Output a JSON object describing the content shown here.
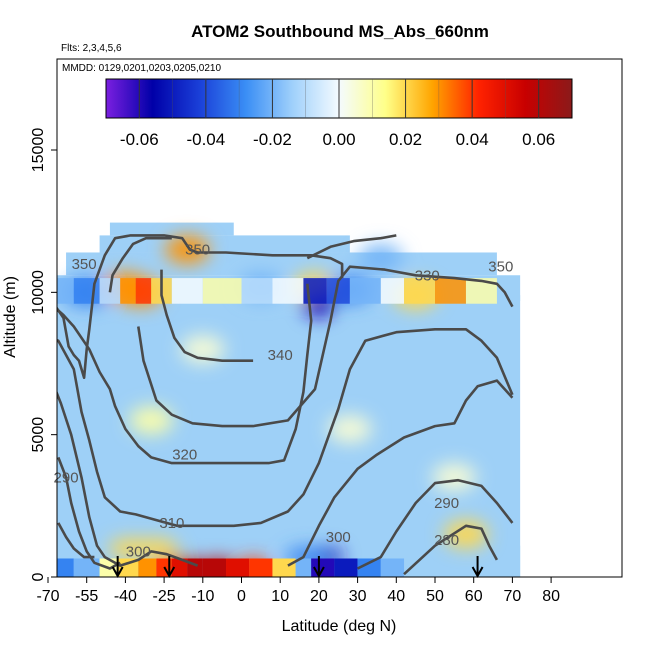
{
  "chart_data": {
    "type": "heatmap",
    "title": "ATOM2 Southbound MS_Abs_660nm",
    "notes": [
      "Flts: 2,3,4,5,6",
      "MMDD: 0129,0201,0203,0205,0210"
    ],
    "xlabel": "Latitude (deg N)",
    "ylabel": "Altitude (m)",
    "xlim": [
      -70,
      80
    ],
    "ylim": [
      0,
      18000
    ],
    "x_ticks": [
      -70,
      -55,
      -40,
      -25,
      -10,
      0,
      10,
      20,
      30,
      40,
      50,
      60,
      70,
      80
    ],
    "y_ticks": [
      0,
      5000,
      10000,
      15000
    ],
    "colorbar": {
      "ticks": [
        -0.06,
        -0.04,
        -0.02,
        0.0,
        0.02,
        0.04,
        0.06
      ],
      "tick_labels": [
        "-0.06",
        "-0.04",
        "-0.02",
        "0.00",
        "0.02",
        "0.04",
        "0.06"
      ],
      "range": [
        -0.07,
        0.07
      ],
      "colors": [
        "#7b1fe0",
        "#0000a8",
        "#1a3fd8",
        "#3a8ef5",
        "#9fd0fb",
        "#f4fbff",
        "#ffff88",
        "#ffa500",
        "#ff2200",
        "#c80000",
        "#8b1a1a"
      ]
    },
    "field_hotspots": [
      {
        "lat": -22,
        "alt": 300,
        "value": 0.04
      },
      {
        "lat": -16,
        "alt": 300,
        "value": 0.06
      },
      {
        "lat": -6,
        "alt": 300,
        "value": 0.06
      },
      {
        "lat": 3,
        "alt": 300,
        "value": 0.04
      },
      {
        "lat": -38,
        "alt": 1000,
        "value": 0.02
      },
      {
        "lat": -28,
        "alt": 1000,
        "value": 0.02
      },
      {
        "lat": -40,
        "alt": 10200,
        "value": 0.03
      },
      {
        "lat": -34,
        "alt": 10000,
        "value": 0.03
      },
      {
        "lat": 19,
        "alt": 10200,
        "value": 0.02
      },
      {
        "lat": 45,
        "alt": 9900,
        "value": 0.02
      },
      {
        "lat": -16,
        "alt": 11500,
        "value": 0.03
      },
      {
        "lat": 58,
        "alt": 1500,
        "value": 0.02
      },
      {
        "lat": 20,
        "alt": 9600,
        "value": -0.06
      },
      {
        "lat": 22,
        "alt": 700,
        "value": -0.06
      },
      {
        "lat": 17,
        "alt": 700,
        "value": -0.03
      },
      {
        "lat": 28,
        "alt": 10100,
        "value": -0.03
      },
      {
        "lat": -55,
        "alt": 10000,
        "value": -0.03
      },
      {
        "lat": 5,
        "alt": 10200,
        "value": -0.02
      },
      {
        "lat": 36,
        "alt": 11200,
        "value": -0.02
      },
      {
        "lat": -30,
        "alt": 5500,
        "value": 0.01
      },
      {
        "lat": 28,
        "alt": 5200,
        "value": 0.005
      },
      {
        "lat": -10,
        "alt": 8000,
        "value": 0.005
      },
      {
        "lat": 55,
        "alt": 3500,
        "value": 0.005
      }
    ],
    "contour_labels": [
      {
        "text": "350",
        "lat": -12,
        "alt": 11500
      },
      {
        "text": "350",
        "lat": -56,
        "alt": 11000
      },
      {
        "text": "330",
        "lat": 48,
        "alt": 10600
      },
      {
        "text": "350",
        "lat": 67,
        "alt": 10900
      },
      {
        "text": "340",
        "lat": 10,
        "alt": 7800
      },
      {
        "text": "320",
        "lat": -17,
        "alt": 4300
      },
      {
        "text": "310",
        "lat": -22,
        "alt": 1900
      },
      {
        "text": "290",
        "lat": -63,
        "alt": 3500
      },
      {
        "text": "290",
        "lat": 53,
        "alt": 2600
      },
      {
        "text": "300",
        "lat": 25,
        "alt": 1400
      },
      {
        "text": "300",
        "lat": -35,
        "alt": 900
      },
      {
        "text": "280",
        "lat": 53,
        "alt": 1300
      }
    ],
    "contours": [
      [
        [
          -67,
          9500
        ],
        [
          -64,
          9100
        ],
        [
          -62,
          8100
        ],
        [
          -60,
          7800
        ],
        [
          -58,
          7600
        ],
        [
          -56,
          7000
        ],
        [
          -55,
          8000
        ],
        [
          -54,
          8700
        ],
        [
          -53,
          9500
        ],
        [
          -52,
          10300
        ],
        [
          -48,
          11300
        ],
        [
          -44,
          11900
        ],
        [
          -38,
          12000
        ],
        [
          -25,
          12000
        ],
        [
          -18,
          11900
        ],
        [
          -15,
          11500
        ],
        [
          -12,
          11400
        ],
        [
          -4,
          11400
        ],
        [
          8,
          11300
        ],
        [
          18,
          11300
        ],
        [
          23,
          11200
        ],
        [
          26,
          11000
        ],
        [
          26,
          10500
        ]
      ],
      [
        [
          17,
          11200
        ],
        [
          23,
          11600
        ],
        [
          29,
          11800
        ],
        [
          36,
          11900
        ],
        [
          40,
          12000
        ]
      ],
      [
        [
          -46,
          10000
        ],
        [
          -45,
          10600
        ],
        [
          -41,
          11200
        ],
        [
          -37,
          11700
        ],
        [
          -32,
          11900
        ],
        [
          -22,
          11900
        ]
      ],
      [
        [
          -26,
          10800
        ],
        [
          -26,
          9900
        ],
        [
          -24,
          9200
        ],
        [
          -21,
          8400
        ],
        [
          -17,
          7900
        ],
        [
          -12,
          7700
        ],
        [
          -5,
          7600
        ],
        [
          0,
          7600
        ],
        [
          3,
          7600
        ]
      ],
      [
        [
          -35,
          8800
        ],
        [
          -33,
          7600
        ],
        [
          -28,
          6200
        ],
        [
          -22,
          5700
        ],
        [
          -14,
          5400
        ],
        [
          -5,
          5300
        ],
        [
          3,
          5300
        ],
        [
          12,
          5500
        ],
        [
          19,
          6600
        ],
        [
          23,
          9000
        ],
        [
          25,
          10400
        ],
        [
          28,
          10900
        ],
        [
          37,
          10800
        ],
        [
          45,
          10600
        ],
        [
          55,
          10500
        ],
        [
          62,
          10400
        ],
        [
          66,
          10300
        ],
        [
          68,
          10000
        ],
        [
          70,
          9500
        ]
      ],
      [
        [
          -69,
          9600
        ],
        [
          -64,
          9200
        ],
        [
          -60,
          8800
        ],
        [
          -54,
          8000
        ],
        [
          -50,
          7200
        ],
        [
          -46,
          6600
        ],
        [
          -44,
          6000
        ],
        [
          -40,
          5200
        ],
        [
          -35,
          4600
        ],
        [
          -30,
          4200
        ],
        [
          -22,
          4000
        ],
        [
          -10,
          4000
        ],
        [
          0,
          4000
        ],
        [
          7,
          4000
        ],
        [
          11,
          4100
        ],
        [
          14,
          5200
        ],
        [
          16,
          6500
        ],
        [
          17,
          7800
        ],
        [
          18,
          9000
        ],
        [
          17,
          10300
        ]
      ],
      [
        [
          -69,
          8400
        ],
        [
          -66,
          8300
        ],
        [
          -60,
          7300
        ],
        [
          -57,
          5800
        ],
        [
          -54,
          4800
        ],
        [
          -51,
          3700
        ],
        [
          -48,
          2800
        ],
        [
          -42,
          2300
        ],
        [
          -36,
          2200
        ],
        [
          -28,
          2000
        ],
        [
          -20,
          1800
        ],
        [
          -10,
          1800
        ],
        [
          -2,
          1800
        ],
        [
          5,
          1900
        ],
        [
          12,
          2300
        ],
        [
          16,
          2900
        ],
        [
          20,
          4000
        ],
        [
          25,
          5900
        ],
        [
          28,
          7300
        ],
        [
          32,
          8300
        ],
        [
          40,
          8600
        ],
        [
          50,
          8700
        ],
        [
          58,
          8700
        ],
        [
          62,
          8300
        ],
        [
          66,
          7700
        ],
        [
          70,
          6400
        ]
      ],
      [
        [
          -69,
          7000
        ],
        [
          -65,
          6100
        ],
        [
          -61,
          5000
        ],
        [
          -57,
          3500
        ],
        [
          -54,
          2100
        ],
        [
          -51,
          1100
        ],
        [
          -48,
          700
        ],
        [
          -42,
          400
        ],
        [
          -35,
          600
        ],
        [
          -30,
          900
        ],
        [
          -24,
          800
        ],
        [
          -18,
          600
        ],
        [
          -12,
          400
        ]
      ],
      [
        [
          -66,
          4200
        ],
        [
          -63,
          3500
        ],
        [
          -61,
          2600
        ],
        [
          -58,
          1600
        ],
        [
          -55,
          900
        ],
        [
          -52,
          500
        ],
        [
          -46,
          300
        ],
        [
          -42,
          500
        ]
      ],
      [
        [
          12,
          400
        ],
        [
          16,
          700
        ],
        [
          20,
          1800
        ],
        [
          24,
          2800
        ],
        [
          30,
          3800
        ],
        [
          35,
          4300
        ],
        [
          42,
          4900
        ],
        [
          50,
          5300
        ],
        [
          55,
          5400
        ],
        [
          58,
          6200
        ],
        [
          61,
          6700
        ],
        [
          66,
          6900
        ],
        [
          70,
          6300
        ]
      ],
      [
        [
          30,
          300
        ],
        [
          36,
          700
        ],
        [
          40,
          1600
        ],
        [
          45,
          2600
        ],
        [
          50,
          3300
        ],
        [
          56,
          3400
        ],
        [
          62,
          3200
        ],
        [
          66,
          2600
        ],
        [
          70,
          1900
        ]
      ],
      [
        [
          42,
          100
        ],
        [
          46,
          600
        ],
        [
          50,
          1100
        ],
        [
          58,
          1800
        ],
        [
          62,
          1700
        ],
        [
          64,
          1100
        ],
        [
          66,
          600
        ]
      ],
      [
        [
          -66,
          1900
        ],
        [
          -63,
          1400
        ],
        [
          -60,
          1000
        ],
        [
          -56,
          700
        ],
        [
          -52,
          700
        ]
      ]
    ],
    "flight_markers_lat": [
      -43,
      -23,
      20,
      61
    ]
  }
}
